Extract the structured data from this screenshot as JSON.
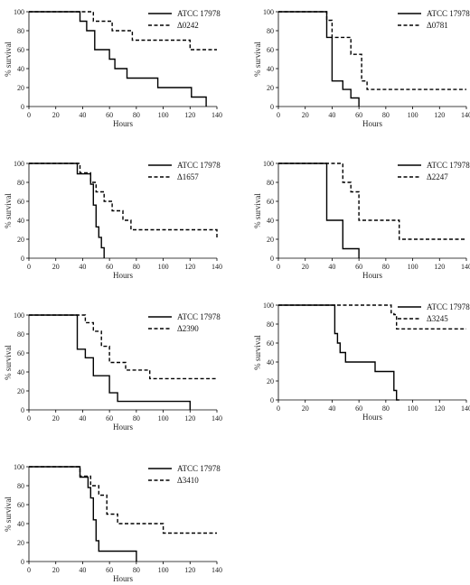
{
  "chart_data": [
    {
      "type": "line",
      "step": true,
      "xlabel": "Hours",
      "ylabel": "% survival",
      "xlim": [
        0,
        140
      ],
      "ylim": [
        0,
        100
      ],
      "xticks": [
        0,
        20,
        40,
        60,
        80,
        100,
        120,
        140
      ],
      "yticks": [
        0,
        20,
        40,
        60,
        80,
        100
      ],
      "legend": "top-right",
      "series": [
        {
          "name": "ATCC 17978",
          "style": "solid",
          "x": [
            0,
            38,
            43,
            49,
            60,
            64,
            73,
            96,
            121,
            132
          ],
          "y": [
            100,
            90,
            80,
            60,
            50,
            40,
            30,
            20,
            10,
            0
          ]
        },
        {
          "name": "Δ0242",
          "style": "dashed",
          "x": [
            0,
            48,
            62,
            77,
            120,
            140
          ],
          "y": [
            100,
            90,
            80,
            70,
            60,
            60
          ]
        }
      ]
    },
    {
      "type": "line",
      "step": true,
      "xlabel": "Hours",
      "ylabel": "% survival",
      "xlim": [
        0,
        140
      ],
      "ylim": [
        0,
        100
      ],
      "xticks": [
        0,
        20,
        40,
        60,
        80,
        100,
        120,
        140
      ],
      "yticks": [
        0,
        20,
        40,
        60,
        80,
        100
      ],
      "legend": "top-right",
      "series": [
        {
          "name": "ATCC 17978",
          "style": "solid",
          "x": [
            0,
            36,
            40,
            48,
            54,
            60
          ],
          "y": [
            100,
            73,
            27,
            18,
            9,
            0
          ]
        },
        {
          "name": "Δ0781",
          "style": "dashed",
          "x": [
            0,
            36,
            40,
            54,
            62,
            66,
            140
          ],
          "y": [
            100,
            91,
            73,
            55,
            27,
            18,
            18
          ]
        }
      ]
    },
    {
      "type": "line",
      "step": true,
      "xlabel": "Hours",
      "ylabel": "% survival",
      "xlim": [
        0,
        140
      ],
      "ylim": [
        0,
        100
      ],
      "xticks": [
        0,
        20,
        40,
        60,
        80,
        100,
        120,
        140
      ],
      "yticks": [
        0,
        20,
        40,
        60,
        80,
        100
      ],
      "legend": "top-right",
      "series": [
        {
          "name": "ATCC 17978",
          "style": "solid",
          "x": [
            0,
            36,
            46,
            48,
            50,
            52,
            54,
            56
          ],
          "y": [
            100,
            89,
            78,
            56,
            33,
            22,
            11,
            0
          ]
        },
        {
          "name": "Δ1657",
          "style": "dashed",
          "x": [
            0,
            38,
            46,
            50,
            56,
            62,
            70,
            76,
            140
          ],
          "y": [
            100,
            90,
            80,
            70,
            60,
            50,
            40,
            30,
            20
          ]
        }
      ]
    },
    {
      "type": "line",
      "step": true,
      "xlabel": "Hours",
      "ylabel": "% survival",
      "xlim": [
        0,
        140
      ],
      "ylim": [
        0,
        100
      ],
      "xticks": [
        0,
        20,
        40,
        60,
        80,
        100,
        120,
        140
      ],
      "yticks": [
        0,
        20,
        40,
        60,
        80,
        100
      ],
      "legend": "top-right",
      "series": [
        {
          "name": "ATCC 17978",
          "style": "solid",
          "x": [
            0,
            36,
            48,
            60
          ],
          "y": [
            100,
            40,
            10,
            0
          ]
        },
        {
          "name": "Δ2247",
          "style": "dashed",
          "x": [
            0,
            48,
            54,
            60,
            90,
            140
          ],
          "y": [
            100,
            80,
            70,
            40,
            20,
            20
          ]
        }
      ]
    },
    {
      "type": "line",
      "step": true,
      "xlabel": "Hours",
      "ylabel": "% survival",
      "xlim": [
        0,
        140
      ],
      "ylim": [
        0,
        100
      ],
      "xticks": [
        0,
        20,
        40,
        60,
        80,
        100,
        120,
        140
      ],
      "yticks": [
        0,
        20,
        40,
        60,
        80,
        100
      ],
      "legend": "top-right",
      "series": [
        {
          "name": "ATCC 17978",
          "style": "solid",
          "x": [
            0,
            36,
            42,
            48,
            60,
            66,
            120
          ],
          "y": [
            100,
            64,
            55,
            36,
            18,
            9,
            0
          ]
        },
        {
          "name": "Δ2390",
          "style": "dashed",
          "x": [
            0,
            42,
            48,
            54,
            60,
            72,
            90,
            140
          ],
          "y": [
            100,
            92,
            83,
            67,
            50,
            42,
            33,
            33
          ]
        }
      ]
    },
    {
      "type": "line",
      "step": true,
      "xlabel": "Hours",
      "ylabel": "% survival",
      "xlim": [
        0,
        140
      ],
      "ylim": [
        0,
        100
      ],
      "xticks": [
        0,
        20,
        40,
        60,
        80,
        100,
        120,
        140
      ],
      "yticks": [
        0,
        20,
        40,
        60,
        80,
        100
      ],
      "legend": "top-right",
      "series": [
        {
          "name": "ATCC 17978",
          "style": "solid",
          "x": [
            0,
            42,
            44,
            46,
            50,
            56,
            72,
            86,
            88,
            90
          ],
          "y": [
            100,
            70,
            60,
            50,
            40,
            40,
            30,
            10,
            0,
            0
          ]
        },
        {
          "name": "Δ3245",
          "style": "dashed",
          "x": [
            0,
            84,
            86,
            88,
            140
          ],
          "y": [
            100,
            92,
            90,
            75,
            75
          ]
        }
      ]
    },
    {
      "type": "line",
      "step": true,
      "xlabel": "Hours",
      "ylabel": "% survival",
      "xlim": [
        0,
        140
      ],
      "ylim": [
        0,
        100
      ],
      "xticks": [
        0,
        20,
        40,
        60,
        80,
        100,
        120,
        140
      ],
      "yticks": [
        0,
        20,
        40,
        60,
        80,
        100
      ],
      "legend": "top-right",
      "series": [
        {
          "name": "ATCC 17978",
          "style": "solid",
          "x": [
            0,
            38,
            44,
            46,
            48,
            50,
            52,
            54,
            80
          ],
          "y": [
            100,
            89,
            78,
            67,
            44,
            22,
            11,
            11,
            0
          ]
        },
        {
          "name": "Δ3410",
          "style": "dashed",
          "x": [
            0,
            38,
            46,
            52,
            58,
            66,
            100,
            140
          ],
          "y": [
            100,
            90,
            80,
            70,
            50,
            40,
            30,
            30
          ]
        }
      ]
    }
  ]
}
